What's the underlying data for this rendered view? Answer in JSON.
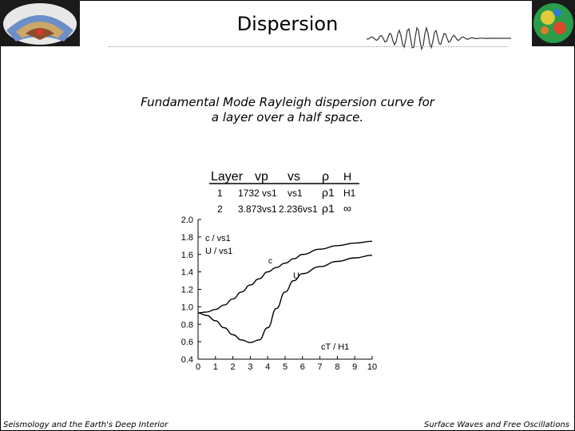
{
  "slide": {
    "title": "Dispersion",
    "caption_line1": "Fundamental Mode Rayleigh dispersion curve for",
    "caption_line2": "a layer over a half space.",
    "footer_left": "Seismology and the Earth's Deep Interior",
    "footer_right": "Surface Waves and Free Oscillations"
  },
  "model_table": {
    "headers": [
      "Layer",
      "vp",
      "vs",
      "ρ",
      "H"
    ],
    "rows": [
      [
        "1",
        "1732 vs1",
        "vs1",
        "ρ1",
        "H1"
      ],
      [
        "2",
        "3.873vs1",
        "2.236vs1",
        "ρ1",
        "∞"
      ]
    ]
  },
  "chart_data": {
    "type": "line",
    "xlabel": "cT / H1",
    "ylabel_line1": "c / vs1",
    "ylabel_line2": "U / vs1",
    "xlim": [
      0,
      10
    ],
    "ylim": [
      0.4,
      2.0
    ],
    "x_ticks": [
      "0",
      "1",
      "2",
      "3",
      "4",
      "5",
      "6",
      "7",
      "8",
      "9",
      "10"
    ],
    "y_ticks": [
      "0.4",
      "0.6",
      "0.8",
      "1.0",
      "1.2",
      "1.4",
      "1.6",
      "1.8",
      "2.0"
    ],
    "grid": false,
    "series": [
      {
        "name": "c",
        "x": [
          0,
          0.5,
          1,
          1.5,
          2,
          2.5,
          3,
          3.5,
          4,
          4.5,
          5,
          5.5,
          6,
          7,
          8,
          9,
          10
        ],
        "values": [
          0.93,
          0.94,
          0.97,
          1.02,
          1.09,
          1.17,
          1.25,
          1.32,
          1.4,
          1.45,
          1.5,
          1.55,
          1.6,
          1.66,
          1.7,
          1.73,
          1.75
        ]
      },
      {
        "name": "U",
        "x": [
          0,
          0.5,
          1,
          1.5,
          2,
          2.5,
          3,
          3.5,
          4,
          4.5,
          5,
          5.5,
          6,
          7,
          8,
          9,
          10
        ],
        "values": [
          0.93,
          0.9,
          0.84,
          0.76,
          0.68,
          0.62,
          0.59,
          0.62,
          0.76,
          0.98,
          1.17,
          1.3,
          1.38,
          1.46,
          1.52,
          1.56,
          1.59
        ]
      }
    ]
  }
}
